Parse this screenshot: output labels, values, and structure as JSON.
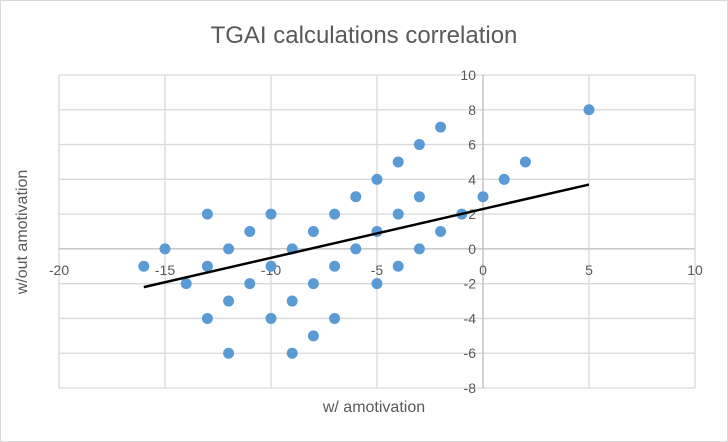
{
  "chart_data": {
    "type": "scatter",
    "title": "TGAI calculations correlation",
    "xlabel": "w/ amotivation",
    "ylabel": "w/out amotivation",
    "xlim": [
      -20,
      10
    ],
    "ylim": [
      -8,
      10
    ],
    "xticks": [
      -20,
      -15,
      -10,
      -5,
      0,
      5,
      10
    ],
    "yticks": [
      -8,
      -6,
      -4,
      -2,
      0,
      2,
      4,
      6,
      8,
      10
    ],
    "grid": true,
    "legend": "none",
    "marker_color": "#5b9bd5",
    "trendline": {
      "type": "linear",
      "color": "#000000",
      "x": [
        -16,
        5
      ],
      "y": [
        -2.2,
        3.7
      ]
    },
    "points": [
      [
        -16,
        -1
      ],
      [
        -15,
        0
      ],
      [
        -14,
        -2
      ],
      [
        -13,
        2
      ],
      [
        -13,
        -1
      ],
      [
        -13,
        -4
      ],
      [
        -12,
        0
      ],
      [
        -12,
        -3
      ],
      [
        -12,
        -6
      ],
      [
        -11,
        1
      ],
      [
        -11,
        -2
      ],
      [
        -10,
        2
      ],
      [
        -10,
        -1
      ],
      [
        -10,
        -4
      ],
      [
        -9,
        0
      ],
      [
        -9,
        -3
      ],
      [
        -9,
        -6
      ],
      [
        -8,
        1
      ],
      [
        -8,
        -2
      ],
      [
        -8,
        -5
      ],
      [
        -7,
        2
      ],
      [
        -7,
        -1
      ],
      [
        -7,
        -4
      ],
      [
        -6,
        3
      ],
      [
        -6,
        0
      ],
      [
        -5,
        4
      ],
      [
        -5,
        1
      ],
      [
        -5,
        -2
      ],
      [
        -4,
        5
      ],
      [
        -4,
        2
      ],
      [
        -4,
        -1
      ],
      [
        -3,
        6
      ],
      [
        -3,
        3
      ],
      [
        -3,
        0
      ],
      [
        -2,
        7
      ],
      [
        -2,
        1
      ],
      [
        -1,
        2
      ],
      [
        0,
        3
      ],
      [
        1,
        4
      ],
      [
        2,
        5
      ],
      [
        5,
        8
      ]
    ]
  }
}
